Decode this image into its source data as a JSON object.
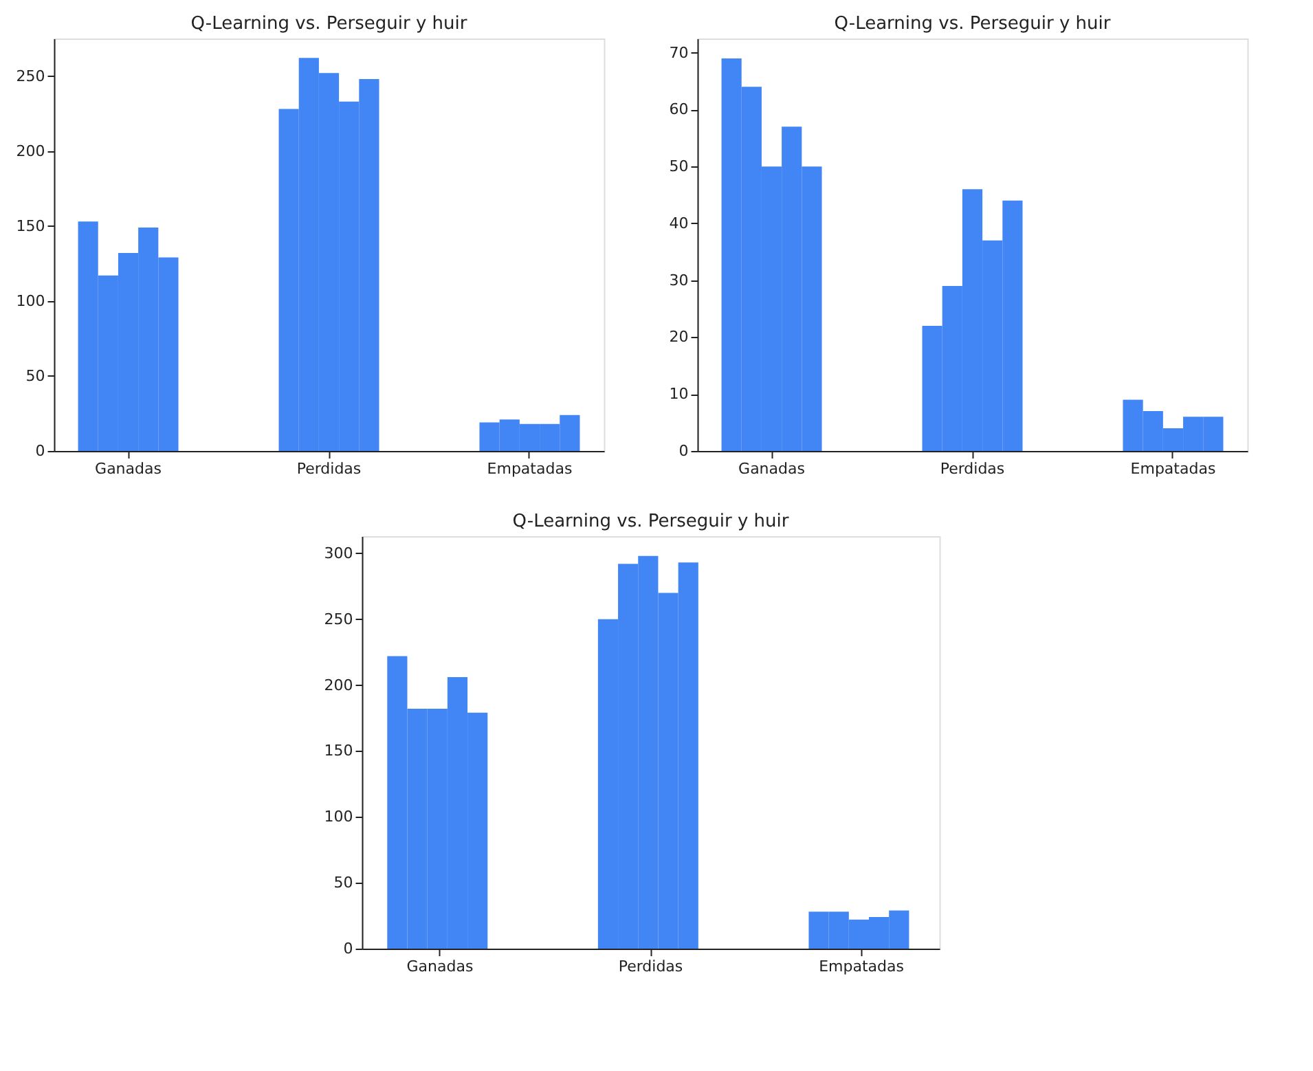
{
  "chart_data": [
    {
      "type": "bar",
      "title": "Q-Learning vs. Perseguir y huir",
      "categories": [
        "Ganadas",
        "Perdidas",
        "Empatadas"
      ],
      "series": [
        {
          "color": "#4285f4",
          "values": [
            153,
            228,
            19
          ]
        },
        {
          "color": "#4285f4",
          "values": [
            117,
            262,
            21
          ]
        },
        {
          "color": "#4285f4",
          "values": [
            132,
            252,
            18
          ]
        },
        {
          "color": "#4285f4",
          "values": [
            149,
            233,
            18
          ]
        },
        {
          "color": "#4285f4",
          "values": [
            129,
            248,
            24
          ]
        }
      ],
      "ylim": [
        0,
        275
      ],
      "yticks": [
        0,
        50,
        100,
        150,
        200,
        250
      ],
      "grid": false,
      "legend": false
    },
    {
      "type": "bar",
      "title": "Q-Learning vs. Perseguir y huir",
      "categories": [
        "Ganadas",
        "Perdidas",
        "Empatadas"
      ],
      "series": [
        {
          "color": "#4285f4",
          "values": [
            69,
            22,
            9
          ]
        },
        {
          "color": "#4285f4",
          "values": [
            64,
            29,
            7
          ]
        },
        {
          "color": "#4285f4",
          "values": [
            50,
            46,
            4
          ]
        },
        {
          "color": "#4285f4",
          "values": [
            57,
            37,
            6
          ]
        },
        {
          "color": "#4285f4",
          "values": [
            50,
            44,
            6
          ]
        }
      ],
      "ylim": [
        0,
        72.5
      ],
      "yticks": [
        0,
        10,
        20,
        30,
        40,
        50,
        60,
        70
      ],
      "grid": false,
      "legend": false
    },
    {
      "type": "bar",
      "title": "Q-Learning vs. Perseguir y huir",
      "categories": [
        "Ganadas",
        "Perdidas",
        "Empatadas"
      ],
      "series": [
        {
          "color": "#4285f4",
          "values": [
            222,
            250,
            28
          ]
        },
        {
          "color": "#4285f4",
          "values": [
            182,
            292,
            28
          ]
        },
        {
          "color": "#4285f4",
          "values": [
            182,
            298,
            22
          ]
        },
        {
          "color": "#4285f4",
          "values": [
            206,
            270,
            24
          ]
        },
        {
          "color": "#4285f4",
          "values": [
            179,
            293,
            29
          ]
        }
      ],
      "ylim": [
        0,
        313
      ],
      "yticks": [
        0,
        50,
        100,
        150,
        200,
        250,
        300
      ],
      "grid": false,
      "legend": false
    }
  ]
}
